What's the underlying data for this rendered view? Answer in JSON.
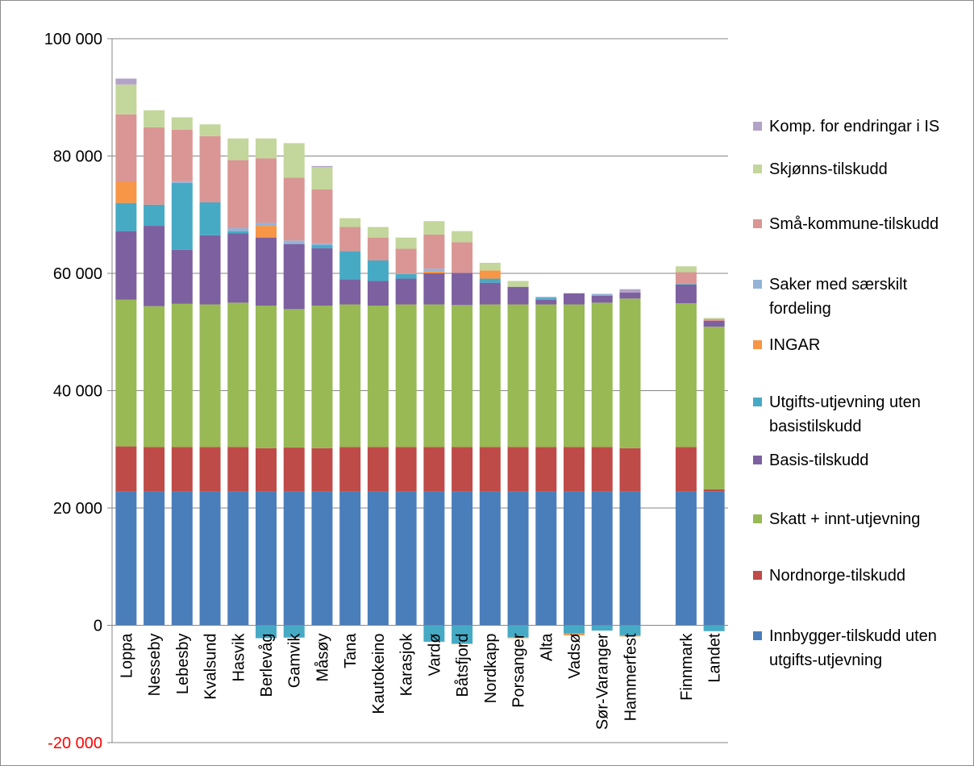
{
  "chart_data": {
    "type": "bar",
    "stacked": true,
    "title": "",
    "xlabel": "",
    "ylabel": "",
    "ylim": [
      -20000,
      100000
    ],
    "yticks": [
      {
        "value": 100000,
        "label": "100 000"
      },
      {
        "value": 80000,
        "label": "80 000"
      },
      {
        "value": 60000,
        "label": "60 000"
      },
      {
        "value": 40000,
        "label": "40 000"
      },
      {
        "value": 20000,
        "label": "20 000"
      },
      {
        "value": 0,
        "label": "0"
      },
      {
        "value": -20000,
        "label": "-20 000"
      }
    ],
    "negative_tick_color": "#ff0000",
    "grid": true,
    "legend_position": "right",
    "categories": [
      "Loppa",
      "Nesseby",
      "Lebesby",
      "Kvalsund",
      "Hasvik",
      "Berlevåg",
      "Gamvik",
      "Måsøy",
      "Tana",
      "Kautokeino",
      "Karasjok",
      "Vardø",
      "Båtsfjord",
      "Nordkapp",
      "Porsanger",
      "Alta",
      "Vadsø",
      "Sør-Varanger",
      "Hammerfest",
      "",
      "Finnmark",
      "Landet"
    ],
    "series": [
      {
        "name": "Innbygger-tilskudd uten utgifts-utjevning",
        "color": "#4a7ebb",
        "values": [
          22800,
          22800,
          22800,
          22800,
          22800,
          22800,
          22800,
          22800,
          22800,
          22800,
          22800,
          22800,
          22800,
          22800,
          22800,
          22800,
          22800,
          22800,
          22800,
          null,
          22800,
          22800
        ]
      },
      {
        "name": "Nordnorge-tilskudd",
        "color": "#be4b48",
        "values": [
          7700,
          7600,
          7600,
          7600,
          7600,
          7400,
          7500,
          7400,
          7600,
          7600,
          7600,
          7600,
          7600,
          7600,
          7600,
          7600,
          7600,
          7600,
          7400,
          null,
          7600,
          400
        ]
      },
      {
        "name": "Skatt + innt-utjevning",
        "color": "#98b954",
        "values": [
          25000,
          24000,
          24400,
          24300,
          24600,
          24300,
          23600,
          24300,
          24300,
          24100,
          24300,
          24300,
          24200,
          24300,
          24300,
          24300,
          24300,
          24600,
          25500,
          null,
          24500,
          27700
        ]
      },
      {
        "name": "Basis-tilskudd",
        "color": "#7d60a0",
        "values": [
          11700,
          13700,
          9200,
          11800,
          11800,
          11600,
          11100,
          9800,
          4300,
          4200,
          4400,
          5300,
          5500,
          3700,
          3000,
          800,
          1900,
          1200,
          1000,
          null,
          3200,
          1000
        ]
      },
      {
        "name": "Utgifts-utjevning uten basistilskudd",
        "color": "#46aac5",
        "values": [
          4800,
          3600,
          11400,
          5600,
          400,
          -2200,
          -2100,
          500,
          4800,
          3500,
          800,
          -2800,
          -3100,
          700,
          -2000,
          300,
          -1400,
          -900,
          -1700,
          null,
          100,
          -1000
        ]
      },
      {
        "name": "INGAR",
        "color": "#f79646",
        "values": [
          3600,
          0,
          0,
          0,
          0,
          2000,
          0,
          0,
          0,
          0,
          0,
          300,
          -100,
          1400,
          -200,
          0,
          -300,
          0,
          -200,
          null,
          0,
          0
        ]
      },
      {
        "name": "Saker med særskilt fordeling",
        "color": "#95b3d7",
        "values": [
          0,
          0,
          300,
          0,
          500,
          500,
          600,
          300,
          0,
          0,
          0,
          500,
          0,
          0,
          0,
          200,
          0,
          300,
          0,
          null,
          0,
          0
        ]
      },
      {
        "name": "Små-kommune-tilskudd",
        "color": "#d99694",
        "values": [
          11500,
          13200,
          8800,
          11300,
          11600,
          11000,
          10700,
          9200,
          4100,
          3900,
          4300,
          5800,
          5200,
          0,
          0,
          0,
          0,
          0,
          0,
          null,
          2000,
          300
        ]
      },
      {
        "name": "Skjønns-tilskudd",
        "color": "#c3d69b",
        "values": [
          5100,
          2900,
          2100,
          2000,
          3700,
          3400,
          5900,
          3800,
          1500,
          1800,
          1900,
          2300,
          1900,
          1300,
          1000,
          0,
          0,
          0,
          0,
          null,
          1000,
          200
        ]
      },
      {
        "name": "Komp. for endringar i IS",
        "color": "#b3a2c7",
        "values": [
          1000,
          0,
          0,
          0,
          0,
          0,
          0,
          200,
          0,
          0,
          0,
          0,
          0,
          0,
          0,
          0,
          0,
          0,
          600,
          null,
          0,
          0
        ]
      }
    ]
  }
}
